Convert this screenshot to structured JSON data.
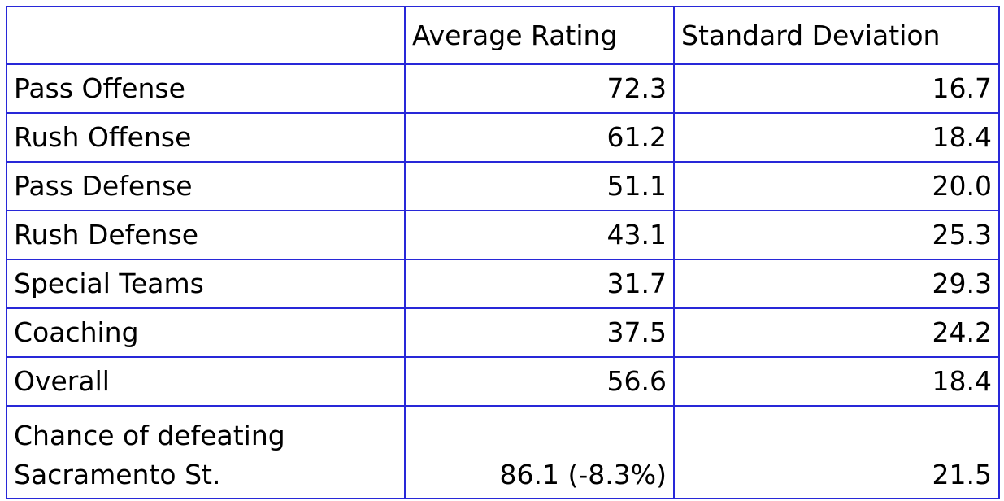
{
  "table": {
    "header": [
      "",
      "Average Rating",
      "Standard Deviation"
    ],
    "rows": [
      [
        "Pass Offense",
        "72.3",
        "16.7"
      ],
      [
        "Rush Offense",
        "61.2",
        "18.4"
      ],
      [
        "Pass Defense",
        "51.1",
        "20.0"
      ],
      [
        "Rush Defense",
        "43.1",
        "25.3"
      ],
      [
        "Special Teams",
        "31.7",
        "29.3"
      ],
      [
        "Coaching",
        "37.5",
        "24.2"
      ],
      [
        "Overall",
        "56.6",
        "18.4"
      ],
      [
        "Chance of defeating Sacramento St.",
        "86.1 (-8.3%)",
        "21.5"
      ]
    ]
  }
}
